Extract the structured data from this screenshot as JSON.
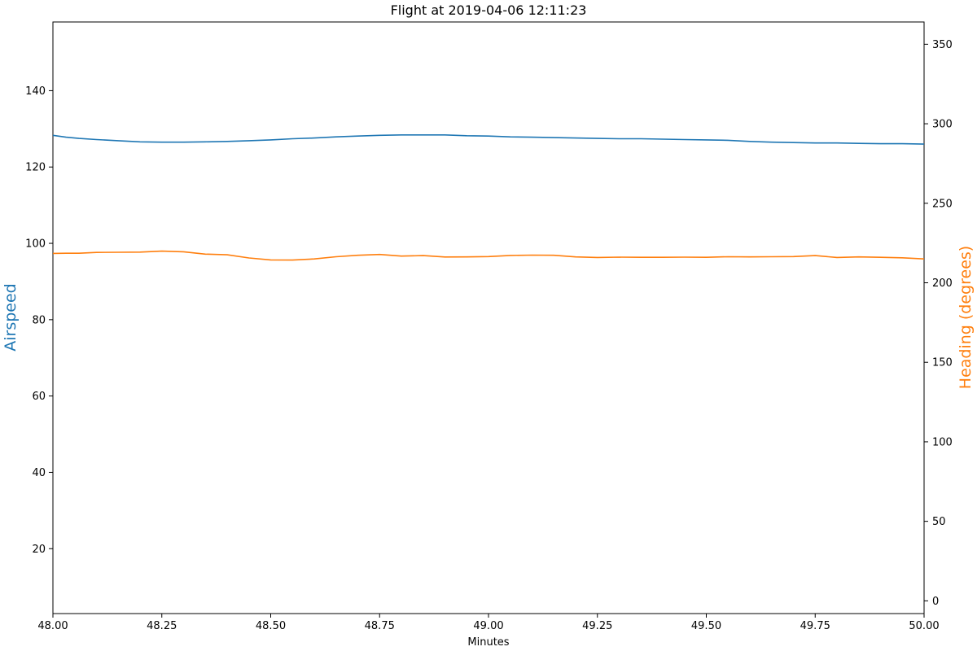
{
  "chart_data": {
    "type": "line",
    "title": "Flight at 2019-04-06 12:11:23",
    "xlabel": "Minutes",
    "ylabel_left": "Airspeed",
    "ylabel_right": "Heading (degrees)",
    "xlim": [
      48.0,
      50.0
    ],
    "ylim_left": [
      3,
      158
    ],
    "ylim_right": [
      -8,
      364
    ],
    "x_ticks": [
      "48.00",
      "48.25",
      "48.50",
      "48.75",
      "49.00",
      "49.25",
      "49.50",
      "49.75",
      "50.00"
    ],
    "y_left_ticks": [
      "20",
      "40",
      "60",
      "80",
      "100",
      "120",
      "140"
    ],
    "y_right_ticks": [
      "0",
      "50",
      "100",
      "150",
      "200",
      "250",
      "300",
      "350"
    ],
    "grid": false,
    "colors": {
      "airspeed": "#1f77b4",
      "heading": "#ff7f0e"
    },
    "series": [
      {
        "name": "Airspeed",
        "axis": "left",
        "color": "#1f77b4",
        "x": [
          48.0,
          48.03,
          48.06,
          48.1,
          48.15,
          48.2,
          48.25,
          48.3,
          48.35,
          48.4,
          48.45,
          48.5,
          48.55,
          48.6,
          48.65,
          48.7,
          48.75,
          48.8,
          48.85,
          48.9,
          48.95,
          49.0,
          49.05,
          49.1,
          49.15,
          49.2,
          49.25,
          49.3,
          49.35,
          49.4,
          49.45,
          49.5,
          49.55,
          49.6,
          49.65,
          49.7,
          49.75,
          49.8,
          49.85,
          49.9,
          49.95,
          50.0
        ],
        "y": [
          128.3,
          127.8,
          127.5,
          127.2,
          126.9,
          126.6,
          126.5,
          126.5,
          126.6,
          126.7,
          126.9,
          127.1,
          127.4,
          127.6,
          127.9,
          128.1,
          128.3,
          128.4,
          128.4,
          128.4,
          128.2,
          128.1,
          127.9,
          127.8,
          127.7,
          127.6,
          127.5,
          127.4,
          127.4,
          127.3,
          127.2,
          127.1,
          127.0,
          126.7,
          126.5,
          126.4,
          126.3,
          126.3,
          126.2,
          126.1,
          126.1,
          126.0
        ]
      },
      {
        "name": "Heading (degrees)",
        "axis": "right",
        "color": "#ff7f0e",
        "x": [
          48.0,
          48.03,
          48.06,
          48.1,
          48.15,
          48.2,
          48.25,
          48.3,
          48.35,
          48.4,
          48.45,
          48.5,
          48.55,
          48.6,
          48.65,
          48.7,
          48.75,
          48.8,
          48.85,
          48.9,
          48.95,
          49.0,
          49.05,
          49.1,
          49.15,
          49.2,
          49.25,
          49.3,
          49.35,
          49.4,
          49.45,
          49.5,
          49.55,
          49.6,
          49.65,
          49.7,
          49.75,
          49.8,
          49.85,
          49.9,
          49.95,
          50.0
        ],
        "y": [
          218.5,
          218.6,
          218.6,
          219.1,
          219.2,
          219.3,
          219.9,
          219.5,
          218.0,
          217.6,
          215.6,
          214.4,
          214.3,
          215.0,
          216.4,
          217.3,
          217.8,
          216.8,
          217.1,
          216.2,
          216.3,
          216.5,
          217.2,
          217.4,
          217.3,
          216.3,
          215.9,
          216.1,
          216.0,
          216.0,
          216.1,
          216.0,
          216.4,
          216.3,
          216.4,
          216.5,
          217.1,
          215.9,
          216.3,
          216.0,
          215.7,
          215.0
        ]
      }
    ]
  }
}
